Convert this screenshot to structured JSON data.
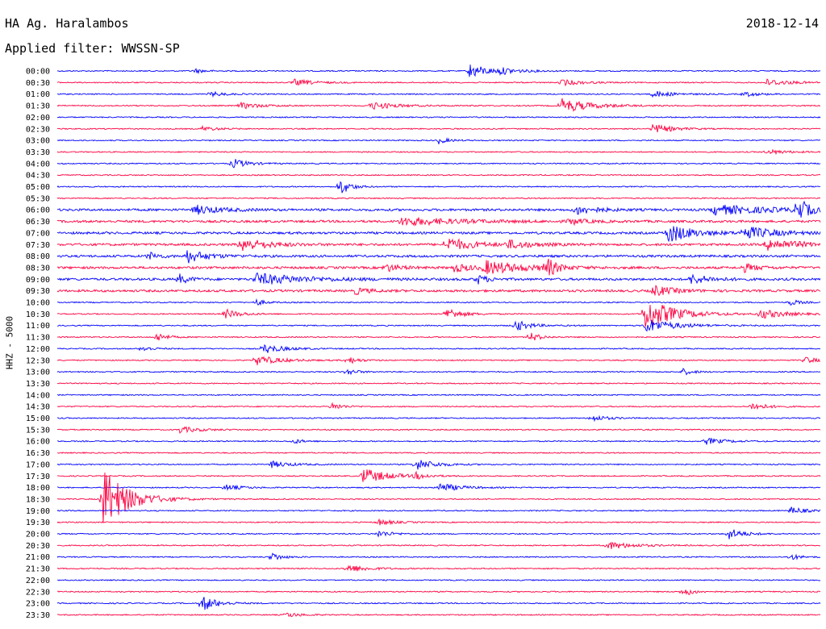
{
  "header": {
    "station": "HA Ag. Haralambos",
    "date": "2018-12-14",
    "filter_label": "Applied filter: WWSSN-SP"
  },
  "colors": {
    "trace_a": "#0000ff",
    "trace_b": "#ff0040",
    "text": "#000000"
  },
  "chart_data": {
    "type": "line",
    "title": "HA Ag. Haralambos",
    "subtitle": "Applied filter: WWSSN-SP",
    "ylabel": "HHZ - 5000",
    "xlabel": "",
    "grid": false,
    "legend": "none",
    "rows": [
      "00:00",
      "00:30",
      "01:00",
      "01:30",
      "02:00",
      "02:30",
      "03:00",
      "03:30",
      "04:00",
      "04:30",
      "05:00",
      "05:30",
      "06:00",
      "06:30",
      "07:00",
      "07:30",
      "08:00",
      "08:30",
      "09:00",
      "09:30",
      "10:00",
      "10:30",
      "11:00",
      "11:30",
      "12:00",
      "12:30",
      "13:00",
      "13:30",
      "14:00",
      "14:30",
      "15:00",
      "15:30",
      "16:00",
      "16:30",
      "17:00",
      "17:30",
      "18:00",
      "18:30",
      "19:00",
      "19:30",
      "20:00",
      "20:30",
      "21:00",
      "21:30",
      "22:00",
      "22:30",
      "23:00",
      "23:30"
    ],
    "row_colors_cycle": [
      "blue",
      "red"
    ],
    "x_units": "fraction of 30-minute row",
    "noise_levels": [
      1,
      1,
      1,
      1,
      1,
      1,
      1,
      1,
      1,
      1,
      1,
      1,
      2,
      2,
      2,
      2,
      2,
      2,
      2,
      2,
      1,
      1,
      1,
      1,
      1,
      1,
      1,
      1,
      1,
      1,
      1,
      1,
      1,
      1,
      1,
      1,
      1,
      1,
      1,
      1,
      1,
      1,
      1,
      1,
      1,
      1,
      1,
      1
    ],
    "events": [
      {
        "row": 0,
        "x": 0.54,
        "amp": 9,
        "dur": 0.04
      },
      {
        "row": 0,
        "x": 0.18,
        "amp": 3,
        "dur": 0.02
      },
      {
        "row": 0,
        "x": 0.58,
        "amp": 3,
        "dur": 0.04
      },
      {
        "row": 1,
        "x": 0.31,
        "amp": 4,
        "dur": 0.04
      },
      {
        "row": 1,
        "x": 0.66,
        "amp": 4,
        "dur": 0.04
      },
      {
        "row": 1,
        "x": 0.93,
        "amp": 4,
        "dur": 0.05
      },
      {
        "row": 2,
        "x": 0.2,
        "amp": 3,
        "dur": 0.03
      },
      {
        "row": 2,
        "x": 0.78,
        "amp": 4,
        "dur": 0.04
      },
      {
        "row": 2,
        "x": 0.9,
        "amp": 3,
        "dur": 0.03
      },
      {
        "row": 3,
        "x": 0.24,
        "amp": 4,
        "dur": 0.04
      },
      {
        "row": 3,
        "x": 0.41,
        "amp": 5,
        "dur": 0.05
      },
      {
        "row": 3,
        "x": 0.66,
        "amp": 9,
        "dur": 0.06
      },
      {
        "row": 5,
        "x": 0.19,
        "amp": 3,
        "dur": 0.03
      },
      {
        "row": 5,
        "x": 0.78,
        "amp": 6,
        "dur": 0.04
      },
      {
        "row": 6,
        "x": 0.5,
        "amp": 4,
        "dur": 0.02
      },
      {
        "row": 7,
        "x": 0.93,
        "amp": 3,
        "dur": 0.04
      },
      {
        "row": 8,
        "x": 0.23,
        "amp": 6,
        "dur": 0.03
      },
      {
        "row": 10,
        "x": 0.37,
        "amp": 11,
        "dur": 0.02
      },
      {
        "row": 12,
        "x": 0.18,
        "amp": 6,
        "dur": 0.05
      },
      {
        "row": 12,
        "x": 0.68,
        "amp": 6,
        "dur": 0.04
      },
      {
        "row": 12,
        "x": 0.86,
        "amp": 6,
        "dur": 0.12
      },
      {
        "row": 12,
        "x": 0.97,
        "amp": 16,
        "dur": 0.02
      },
      {
        "row": 13,
        "x": 0.45,
        "amp": 5,
        "dur": 0.12
      },
      {
        "row": 13,
        "x": 0.67,
        "amp": 4,
        "dur": 0.03
      },
      {
        "row": 14,
        "x": 0.8,
        "amp": 12,
        "dur": 0.05
      },
      {
        "row": 14,
        "x": 0.9,
        "amp": 8,
        "dur": 0.06
      },
      {
        "row": 15,
        "x": 0.24,
        "amp": 9,
        "dur": 0.05
      },
      {
        "row": 15,
        "x": 0.51,
        "amp": 9,
        "dur": 0.05
      },
      {
        "row": 15,
        "x": 0.59,
        "amp": 5,
        "dur": 0.05
      },
      {
        "row": 15,
        "x": 0.93,
        "amp": 7,
        "dur": 0.07
      },
      {
        "row": 16,
        "x": 0.12,
        "amp": 5,
        "dur": 0.02
      },
      {
        "row": 16,
        "x": 0.17,
        "amp": 8,
        "dur": 0.04
      },
      {
        "row": 17,
        "x": 0.43,
        "amp": 5,
        "dur": 0.03
      },
      {
        "row": 17,
        "x": 0.52,
        "amp": 5,
        "dur": 0.04
      },
      {
        "row": 17,
        "x": 0.56,
        "amp": 8,
        "dur": 0.08
      },
      {
        "row": 17,
        "x": 0.64,
        "amp": 13,
        "dur": 0.02
      },
      {
        "row": 17,
        "x": 0.9,
        "amp": 5,
        "dur": 0.03
      },
      {
        "row": 18,
        "x": 0.16,
        "amp": 6,
        "dur": 0.02
      },
      {
        "row": 18,
        "x": 0.26,
        "amp": 7,
        "dur": 0.1
      },
      {
        "row": 18,
        "x": 0.55,
        "amp": 6,
        "dur": 0.02
      },
      {
        "row": 18,
        "x": 0.83,
        "amp": 6,
        "dur": 0.04
      },
      {
        "row": 19,
        "x": 0.39,
        "amp": 4,
        "dur": 0.03
      },
      {
        "row": 19,
        "x": 0.78,
        "amp": 7,
        "dur": 0.04
      },
      {
        "row": 20,
        "x": 0.26,
        "amp": 4,
        "dur": 0.02
      },
      {
        "row": 20,
        "x": 0.96,
        "amp": 4,
        "dur": 0.02
      },
      {
        "row": 21,
        "x": 0.22,
        "amp": 6,
        "dur": 0.03
      },
      {
        "row": 21,
        "x": 0.51,
        "amp": 8,
        "dur": 0.03
      },
      {
        "row": 21,
        "x": 0.77,
        "amp": 20,
        "dur": 0.06
      },
      {
        "row": 21,
        "x": 0.92,
        "amp": 6,
        "dur": 0.05
      },
      {
        "row": 22,
        "x": 0.6,
        "amp": 7,
        "dur": 0.03
      },
      {
        "row": 22,
        "x": 0.77,
        "amp": 9,
        "dur": 0.06
      },
      {
        "row": 23,
        "x": 0.13,
        "amp": 6,
        "dur": 0.02
      },
      {
        "row": 23,
        "x": 0.62,
        "amp": 6,
        "dur": 0.02
      },
      {
        "row": 24,
        "x": 0.27,
        "amp": 6,
        "dur": 0.04
      },
      {
        "row": 24,
        "x": 0.11,
        "amp": 4,
        "dur": 0.02
      },
      {
        "row": 25,
        "x": 0.26,
        "amp": 6,
        "dur": 0.05
      },
      {
        "row": 25,
        "x": 0.38,
        "amp": 5,
        "dur": 0.02
      },
      {
        "row": 25,
        "x": 0.98,
        "amp": 5,
        "dur": 0.02
      },
      {
        "row": 26,
        "x": 0.38,
        "amp": 4,
        "dur": 0.02
      },
      {
        "row": 26,
        "x": 0.82,
        "amp": 4,
        "dur": 0.02
      },
      {
        "row": 29,
        "x": 0.36,
        "amp": 5,
        "dur": 0.02
      },
      {
        "row": 29,
        "x": 0.91,
        "amp": 5,
        "dur": 0.03
      },
      {
        "row": 30,
        "x": 0.7,
        "amp": 4,
        "dur": 0.03
      },
      {
        "row": 31,
        "x": 0.16,
        "amp": 4,
        "dur": 0.04
      },
      {
        "row": 32,
        "x": 0.85,
        "amp": 4,
        "dur": 0.04
      },
      {
        "row": 32,
        "x": 0.31,
        "amp": 3,
        "dur": 0.02
      },
      {
        "row": 34,
        "x": 0.28,
        "amp": 4,
        "dur": 0.04
      },
      {
        "row": 34,
        "x": 0.47,
        "amp": 7,
        "dur": 0.04
      },
      {
        "row": 35,
        "x": 0.4,
        "amp": 10,
        "dur": 0.05
      },
      {
        "row": 35,
        "x": 0.47,
        "amp": 4,
        "dur": 0.02
      },
      {
        "row": 36,
        "x": 0.5,
        "amp": 6,
        "dur": 0.04
      },
      {
        "row": 36,
        "x": 0.22,
        "amp": 4,
        "dur": 0.03
      },
      {
        "row": 37,
        "x": 0.06,
        "amp": 40,
        "dur": 0.05
      },
      {
        "row": 38,
        "x": 0.96,
        "amp": 5,
        "dur": 0.03
      },
      {
        "row": 39,
        "x": 0.42,
        "amp": 4,
        "dur": 0.03
      },
      {
        "row": 40,
        "x": 0.88,
        "amp": 7,
        "dur": 0.03
      },
      {
        "row": 40,
        "x": 0.42,
        "amp": 4,
        "dur": 0.03
      },
      {
        "row": 41,
        "x": 0.72,
        "amp": 5,
        "dur": 0.05
      },
      {
        "row": 42,
        "x": 0.28,
        "amp": 6,
        "dur": 0.02
      },
      {
        "row": 42,
        "x": 0.96,
        "amp": 4,
        "dur": 0.02
      },
      {
        "row": 43,
        "x": 0.38,
        "amp": 5,
        "dur": 0.04
      },
      {
        "row": 45,
        "x": 0.82,
        "amp": 6,
        "dur": 0.02
      },
      {
        "row": 46,
        "x": 0.19,
        "amp": 10,
        "dur": 0.03
      },
      {
        "row": 47,
        "x": 0.3,
        "amp": 3,
        "dur": 0.03
      }
    ]
  }
}
